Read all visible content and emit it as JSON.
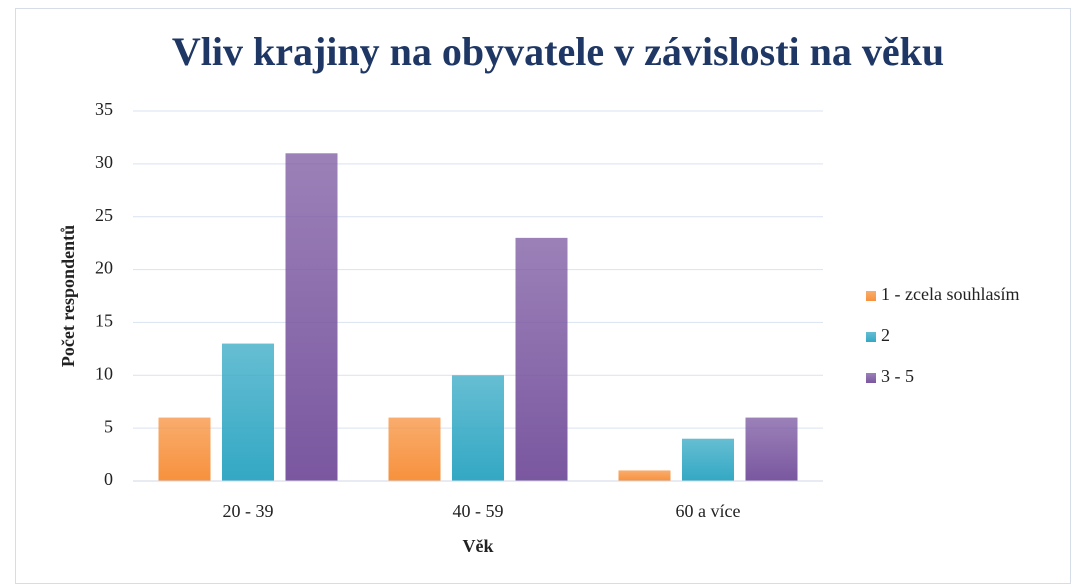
{
  "chart_data": {
    "type": "bar",
    "title": "Vliv krajiny na obyvatele v závislosti na věku",
    "x_label": "Věk",
    "y_label": "Počet respondentů",
    "categories": [
      "20 - 39",
      "40 - 59",
      "60 a více"
    ],
    "series": [
      {
        "name": "1 - zcela souhlasím",
        "color": "#f7913d",
        "values": [
          6,
          6,
          1
        ]
      },
      {
        "name": "2",
        "color": "#33a8c4",
        "values": [
          13,
          10,
          4
        ]
      },
      {
        "name": "3 - 5",
        "color": "#7a57a0",
        "values": [
          31,
          23,
          6
        ]
      }
    ],
    "ylim": [
      0,
      35
    ],
    "yticks": [
      0,
      5,
      10,
      15,
      20,
      25,
      30,
      35
    ],
    "grid": true,
    "legend": "right"
  }
}
